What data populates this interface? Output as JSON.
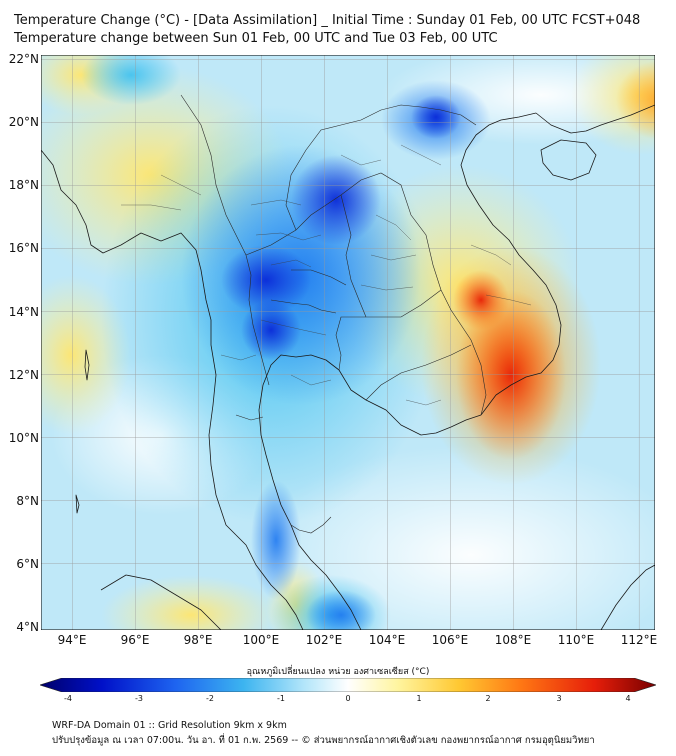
{
  "title": {
    "line1": "Temperature Change (°C) - [Data Assimilation] _ Initial Time : Sunday 01 Feb, 00 UTC FCST+048",
    "line2": "Temperature change between Sun 01 Feb, 00 UTC and Tue 03 Feb, 00 UTC"
  },
  "axes": {
    "lat_labels": [
      "22°N",
      "20°N",
      "18°N",
      "16°N",
      "14°N",
      "12°N",
      "10°N",
      "8°N",
      "6°N",
      "4°N"
    ],
    "lon_labels": [
      "94°E",
      "96°E",
      "98°E",
      "100°E",
      "102°E",
      "104°E",
      "106°E",
      "108°E",
      "110°E",
      "112°E"
    ],
    "lon_range": [
      93,
      112.5
    ],
    "lat_range": [
      4,
      22.25
    ]
  },
  "colorbar": {
    "title": "อุณหภูมิเปลี่ยนแปลง หน่วย องศาเซลเซียส (°C)",
    "ticks": [
      "-4",
      "-3",
      "-2",
      "-1",
      "0",
      "1",
      "2",
      "3",
      "4"
    ],
    "range": [
      -4,
      4
    ],
    "colors": [
      "#00006a",
      "#0010c8",
      "#1e64f0",
      "#3cb4f0",
      "#b4e6fa",
      "#ffffff",
      "#fff5a0",
      "#ffc832",
      "#ff7814",
      "#e61e0a",
      "#780000"
    ]
  },
  "footer": {
    "line1": "WRF-DA Domain 01 :: Grid Resolution 9km x 9km",
    "line2": "ปรับปรุงข้อมูล ณ เวลา 07:00น. วัน อา. ที่ 01 ก.พ. 2569 -- © ส่วนพยากรณ์อากาศเชิงตัวเลข กองพยากรณ์อากาศ กรมอุตุนิยมวิทยา"
  }
}
